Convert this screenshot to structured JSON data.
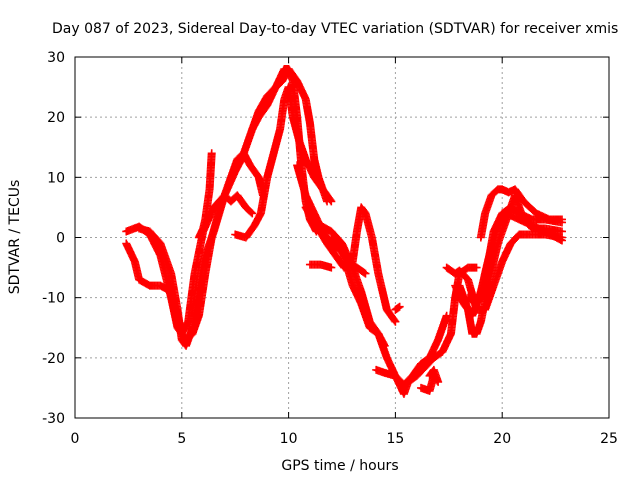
{
  "chart_data": {
    "type": "scatter",
    "title": "Day 087 of 2023, Sidereal Day-to-day VTEC variation (SDTVAR) for receiver xmis",
    "xlabel": "GPS time / hours",
    "ylabel": "SDTVAR / TECUs",
    "xlim": [
      0,
      25
    ],
    "ylim": [
      -30,
      30
    ],
    "x_ticks": [
      0,
      5,
      10,
      15,
      20,
      25
    ],
    "y_ticks": [
      -30,
      -20,
      -10,
      0,
      10,
      20,
      30
    ],
    "x_tick_labels": [
      "0",
      "5",
      "10",
      "15",
      "20",
      "25"
    ],
    "y_tick_labels": [
      "-30",
      "-20",
      "-10",
      "0",
      "10",
      "20",
      "30"
    ],
    "grid": true,
    "marker": "+",
    "color": "#ff0000",
    "series": [
      {
        "points": [
          [
            2.4,
            1.0
          ],
          [
            3.0,
            1.8
          ],
          [
            3.5,
            0.5
          ],
          [
            4.0,
            -3.0
          ],
          [
            4.5,
            -10.0
          ],
          [
            4.8,
            -15.0
          ],
          [
            5.0,
            -16.0
          ],
          [
            5.3,
            -14.0
          ],
          [
            5.6,
            -6.0
          ],
          [
            6.0,
            1.0
          ],
          [
            6.5,
            5.0
          ],
          [
            7.0,
            7.0
          ],
          [
            7.3,
            6.0
          ],
          [
            7.6,
            7.0
          ],
          [
            8.0,
            5.0
          ],
          [
            8.3,
            4.0
          ]
        ]
      },
      {
        "points": [
          [
            2.4,
            -1.0
          ],
          [
            2.8,
            -4.0
          ],
          [
            3.0,
            -7.0
          ],
          [
            3.5,
            -8.0
          ],
          [
            4.0,
            -8.0
          ],
          [
            4.5,
            -9.0
          ],
          [
            4.8,
            -13.0
          ],
          [
            5.0,
            -16.0
          ],
          [
            5.2,
            -17.0
          ],
          [
            5.5,
            -16.0
          ],
          [
            5.8,
            -13.0
          ],
          [
            6.1,
            -6.0
          ],
          [
            6.4,
            0.0
          ],
          [
            6.8,
            5.0
          ],
          [
            7.2,
            9.0
          ],
          [
            7.6,
            13.0
          ],
          [
            7.9,
            14.0
          ],
          [
            8.2,
            12.0
          ],
          [
            8.6,
            10.0
          ],
          [
            8.8,
            7.0
          ]
        ]
      },
      {
        "points": [
          [
            3.0,
            1.5
          ],
          [
            3.5,
            1.0
          ],
          [
            4.0,
            -1.0
          ],
          [
            4.5,
            -6.0
          ],
          [
            4.8,
            -12.0
          ],
          [
            5.0,
            -17.0
          ],
          [
            5.2,
            -18.0
          ],
          [
            5.5,
            -15.0
          ],
          [
            5.8,
            -8.0
          ],
          [
            6.0,
            -4.0
          ],
          [
            6.5,
            1.0
          ],
          [
            7.0,
            7.0
          ],
          [
            7.5,
            11.0
          ],
          [
            7.8,
            13.0
          ],
          [
            8.2,
            17.0
          ],
          [
            8.6,
            21.0
          ],
          [
            9.0,
            23.5
          ],
          [
            9.4,
            25.0
          ],
          [
            9.8,
            28.0
          ],
          [
            10.0,
            28.0
          ],
          [
            10.2,
            26.0
          ],
          [
            10.4,
            20.0
          ],
          [
            10.6,
            12.0
          ],
          [
            10.8,
            6.0
          ],
          [
            11.0,
            3.0
          ],
          [
            11.3,
            1.0
          ]
        ]
      },
      {
        "points": [
          [
            5.8,
            0.0
          ],
          [
            6.0,
            1.5
          ],
          [
            6.1,
            3.0
          ],
          [
            6.3,
            8.0
          ],
          [
            6.4,
            14.0
          ]
        ]
      },
      {
        "points": [
          [
            7.5,
            0.5
          ],
          [
            8.0,
            0.0
          ],
          [
            8.4,
            2.0
          ],
          [
            8.7,
            4.0
          ],
          [
            9.0,
            10.0
          ],
          [
            9.3,
            14.0
          ],
          [
            9.6,
            18.0
          ],
          [
            9.8,
            23.0
          ],
          [
            10.0,
            25.0
          ],
          [
            10.2,
            20.0
          ],
          [
            10.5,
            16.0
          ],
          [
            10.8,
            13.0
          ],
          [
            11.2,
            10.0
          ],
          [
            11.6,
            8.0
          ],
          [
            12.0,
            6.0
          ]
        ]
      },
      {
        "points": [
          [
            8.3,
            18.0
          ],
          [
            8.6,
            20.0
          ],
          [
            9.0,
            22.0
          ],
          [
            9.4,
            25.0
          ],
          [
            9.7,
            26.0
          ],
          [
            10.0,
            28.0
          ],
          [
            10.4,
            26.0
          ],
          [
            10.8,
            23.0
          ],
          [
            11.0,
            19.0
          ],
          [
            11.2,
            13.0
          ],
          [
            11.4,
            10.0
          ],
          [
            11.6,
            8.0
          ],
          [
            11.8,
            6.0
          ]
        ]
      },
      {
        "points": [
          [
            10.4,
            12.0
          ],
          [
            10.8,
            7.0
          ],
          [
            11.2,
            4.0
          ],
          [
            11.6,
            1.0
          ],
          [
            12.0,
            -1.0
          ],
          [
            12.4,
            -2.0
          ],
          [
            12.8,
            -4.0
          ],
          [
            13.2,
            -5.0
          ],
          [
            13.6,
            -6.0
          ]
        ]
      },
      {
        "points": [
          [
            10.8,
            5.0
          ],
          [
            11.3,
            2.0
          ],
          [
            11.8,
            -1.0
          ],
          [
            12.2,
            -3.0
          ],
          [
            12.6,
            -5.0
          ],
          [
            13.0,
            -4.0
          ],
          [
            13.2,
            1.0
          ],
          [
            13.4,
            5.0
          ],
          [
            13.6,
            4.0
          ],
          [
            13.9,
            0.0
          ],
          [
            14.2,
            -6.0
          ],
          [
            14.6,
            -12.0
          ],
          [
            15.0,
            -14.0
          ]
        ]
      },
      {
        "points": [
          [
            11.0,
            -4.5
          ],
          [
            11.5,
            -4.5
          ],
          [
            12.0,
            -5.0
          ]
        ]
      },
      {
        "points": [
          [
            11.0,
            3.0
          ],
          [
            11.5,
            2.0
          ],
          [
            12.0,
            1.0
          ],
          [
            12.5,
            -1.0
          ],
          [
            13.0,
            -5.0
          ],
          [
            13.4,
            -9.0
          ],
          [
            13.8,
            -14.0
          ],
          [
            14.2,
            -16.0
          ],
          [
            14.5,
            -18.0
          ]
        ]
      },
      {
        "points": [
          [
            12.0,
            0.0
          ],
          [
            12.5,
            -2.0
          ],
          [
            13.0,
            -8.0
          ],
          [
            13.4,
            -11.0
          ],
          [
            13.8,
            -15.0
          ],
          [
            14.2,
            -16.0
          ],
          [
            14.6,
            -20.0
          ],
          [
            15.0,
            -23.0
          ],
          [
            15.4,
            -24.5
          ],
          [
            15.8,
            -23.0
          ],
          [
            16.2,
            -21.0
          ],
          [
            16.6,
            -20.0
          ],
          [
            17.0,
            -17.0
          ],
          [
            17.4,
            -13.0
          ]
        ]
      },
      {
        "points": [
          [
            14.1,
            -22.0
          ],
          [
            14.5,
            -22.5
          ],
          [
            15.0,
            -23.0
          ],
          [
            15.4,
            -26.0
          ],
          [
            15.6,
            -24.0
          ],
          [
            16.0,
            -23.0
          ],
          [
            16.4,
            -21.5
          ],
          [
            16.8,
            -20.0
          ],
          [
            17.2,
            -19.0
          ],
          [
            17.6,
            -16.0
          ],
          [
            17.8,
            -10.0
          ],
          [
            18.0,
            -6.0
          ],
          [
            18.4,
            -5.0
          ],
          [
            18.8,
            -5.0
          ]
        ]
      },
      {
        "points": [
          [
            15.0,
            -12.0
          ],
          [
            15.2,
            -11.5
          ]
        ]
      },
      {
        "points": [
          [
            16.2,
            -25.0
          ],
          [
            16.6,
            -25.5
          ],
          [
            16.8,
            -23.0
          ],
          [
            17.0,
            -24.0
          ],
          [
            16.8,
            -22.0
          ],
          [
            16.6,
            -23.0
          ]
        ]
      },
      {
        "points": [
          [
            17.4,
            -5.0
          ],
          [
            17.8,
            -6.0
          ],
          [
            18.0,
            -5.5
          ],
          [
            18.4,
            -7.0
          ],
          [
            18.8,
            -12.0
          ],
          [
            19.2,
            -12.0
          ],
          [
            19.6,
            -8.0
          ],
          [
            20.0,
            -4.0
          ],
          [
            20.4,
            -1.0
          ],
          [
            20.8,
            0.5
          ],
          [
            21.2,
            0.5
          ],
          [
            22.0,
            0.5
          ],
          [
            22.8,
            0.0
          ]
        ]
      },
      {
        "points": [
          [
            18.4,
            -10.0
          ],
          [
            18.8,
            -11.0
          ],
          [
            19.0,
            -10.0
          ],
          [
            19.2,
            -6.0
          ],
          [
            19.4,
            -3.0
          ],
          [
            19.6,
            1.0
          ],
          [
            20.0,
            4.0
          ],
          [
            20.4,
            5.0
          ],
          [
            20.8,
            4.0
          ],
          [
            21.4,
            3.0
          ],
          [
            22.0,
            3.0
          ],
          [
            22.8,
            2.5
          ]
        ]
      },
      {
        "points": [
          [
            18.0,
            -8.0
          ],
          [
            18.4,
            -12.0
          ],
          [
            18.6,
            -16.0
          ],
          [
            18.8,
            -16.0
          ],
          [
            19.0,
            -14.0
          ],
          [
            19.4,
            -7.0
          ],
          [
            19.8,
            -1.0
          ],
          [
            20.2,
            3.0
          ],
          [
            20.6,
            7.0
          ],
          [
            20.9,
            4.0
          ],
          [
            21.4,
            1.5
          ],
          [
            22.0,
            1.5
          ],
          [
            22.8,
            1.0
          ]
        ]
      },
      {
        "points": [
          [
            19.0,
            0.0
          ],
          [
            19.2,
            4.0
          ],
          [
            19.5,
            7.0
          ],
          [
            19.8,
            8.0
          ],
          [
            20.0,
            8.0
          ],
          [
            20.3,
            7.5
          ],
          [
            20.6,
            8.0
          ],
          [
            21.0,
            6.0
          ],
          [
            21.6,
            4.0
          ],
          [
            22.2,
            3.0
          ],
          [
            22.8,
            3.0
          ]
        ]
      },
      {
        "points": [
          [
            17.8,
            -8.0
          ],
          [
            18.2,
            -11.0
          ],
          [
            18.6,
            -13.0
          ],
          [
            19.0,
            -9.0
          ],
          [
            19.4,
            -3.0
          ],
          [
            19.8,
            2.0
          ],
          [
            20.2,
            4.0
          ],
          [
            20.8,
            3.0
          ],
          [
            21.4,
            2.0
          ],
          [
            22.0,
            1.0
          ],
          [
            22.8,
            -0.5
          ]
        ]
      }
    ]
  }
}
